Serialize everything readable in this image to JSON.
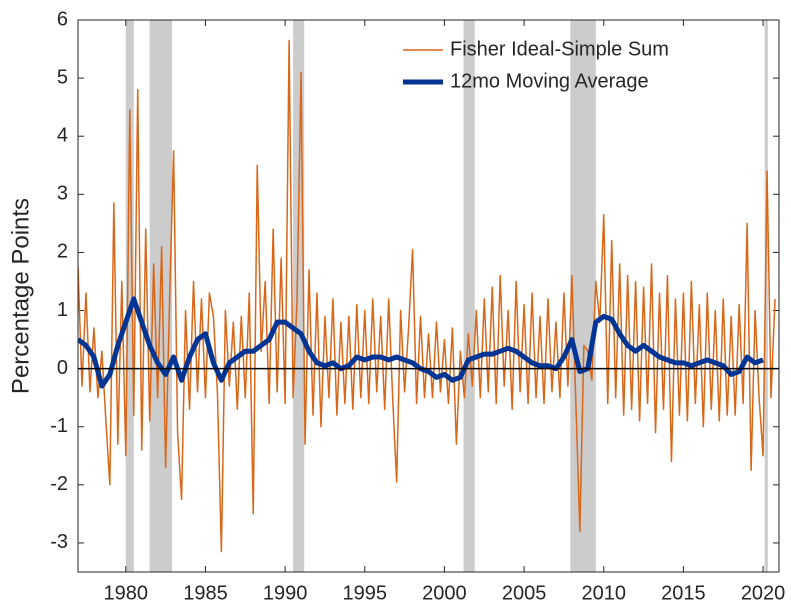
{
  "chart_data": {
    "type": "line",
    "y_label": "Percentage Points",
    "xlim": [
      1977,
      2021
    ],
    "ylim": [
      -3.5,
      6
    ],
    "xticks": [
      1980,
      1985,
      1990,
      1995,
      2000,
      2005,
      2010,
      2015,
      2020
    ],
    "yticks": [
      -3,
      -2,
      -1,
      0,
      1,
      2,
      3,
      4,
      5,
      6
    ],
    "zero_line": true,
    "legend": "upper right",
    "recessions": [
      [
        1980.0,
        1980.5
      ],
      [
        1981.5,
        1982.9
      ],
      [
        1990.5,
        1991.2
      ],
      [
        2001.2,
        2001.9
      ],
      [
        2007.9,
        2009.5
      ],
      [
        2020.1,
        2020.3
      ]
    ],
    "recession_color": "#cccccc",
    "series": [
      {
        "name": "Fisher Ideal-Simple Sum",
        "color": "#d9671a",
        "width": 1.5,
        "x": [
          1977,
          1977.25,
          1977.5,
          1977.75,
          1978,
          1978.25,
          1978.5,
          1978.75,
          1979,
          1979.25,
          1979.5,
          1979.75,
          1980,
          1980.25,
          1980.5,
          1980.75,
          1981,
          1981.25,
          1981.5,
          1981.75,
          1982,
          1982.25,
          1982.5,
          1982.75,
          1983,
          1983.25,
          1983.5,
          1983.75,
          1984,
          1984.25,
          1984.5,
          1984.75,
          1985,
          1985.25,
          1985.5,
          1985.75,
          1986,
          1986.25,
          1986.5,
          1986.75,
          1987,
          1987.25,
          1987.5,
          1987.75,
          1988,
          1988.25,
          1988.5,
          1988.75,
          1989,
          1989.25,
          1989.5,
          1989.75,
          1990,
          1990.25,
          1990.5,
          1990.75,
          1991,
          1991.25,
          1991.5,
          1991.75,
          1992,
          1992.25,
          1992.5,
          1992.75,
          1993,
          1993.25,
          1993.5,
          1993.75,
          1994,
          1994.25,
          1994.5,
          1994.75,
          1995,
          1995.25,
          1995.5,
          1995.75,
          1996,
          1996.25,
          1996.5,
          1996.75,
          1997,
          1997.25,
          1997.5,
          1997.75,
          1998,
          1998.25,
          1998.5,
          1998.75,
          1999,
          1999.25,
          1999.5,
          1999.75,
          2000,
          2000.25,
          2000.5,
          2000.75,
          2001,
          2001.25,
          2001.5,
          2001.75,
          2002,
          2002.25,
          2002.5,
          2002.75,
          2003,
          2003.25,
          2003.5,
          2003.75,
          2004,
          2004.25,
          2004.5,
          2004.75,
          2005,
          2005.25,
          2005.5,
          2005.75,
          2006,
          2006.25,
          2006.5,
          2006.75,
          2007,
          2007.25,
          2007.5,
          2007.75,
          2008,
          2008.25,
          2008.5,
          2008.75,
          2009,
          2009.25,
          2009.5,
          2009.75,
          2010,
          2010.25,
          2010.5,
          2010.75,
          2011,
          2011.25,
          2011.5,
          2011.75,
          2012,
          2012.25,
          2012.5,
          2012.75,
          2013,
          2013.25,
          2013.5,
          2013.75,
          2014,
          2014.25,
          2014.5,
          2014.75,
          2015,
          2015.25,
          2015.5,
          2015.75,
          2016,
          2016.25,
          2016.5,
          2016.75,
          2017,
          2017.25,
          2017.5,
          2017.75,
          2018,
          2018.25,
          2018.5,
          2018.75,
          2019,
          2019.25,
          2019.5,
          2019.75,
          2020,
          2020.25,
          2020.5,
          2020.75
        ],
        "values": [
          1.75,
          -0.3,
          1.3,
          -0.4,
          0.7,
          -0.5,
          0.3,
          -0.9,
          -2.0,
          2.85,
          -1.3,
          1.5,
          -1.5,
          4.45,
          -0.8,
          4.8,
          -1.4,
          2.4,
          -0.9,
          1.8,
          -0.5,
          2.1,
          -1.7,
          1.2,
          3.75,
          -1.1,
          -2.25,
          1.0,
          -0.7,
          1.5,
          -0.4,
          1.2,
          -0.5,
          1.3,
          0.9,
          -0.4,
          -3.15,
          1.0,
          -0.3,
          0.8,
          -0.7,
          0.9,
          -0.5,
          1.3,
          -2.5,
          3.5,
          0.3,
          1.5,
          -0.6,
          2.4,
          -0.4,
          1.9,
          -0.6,
          5.65,
          -0.5,
          1.2,
          5.1,
          -1.3,
          1.7,
          -0.8,
          1.3,
          -1.0,
          0.9,
          -0.5,
          1.2,
          -0.8,
          0.8,
          -0.6,
          0.9,
          -0.7,
          1.1,
          -0.5,
          1.0,
          -0.6,
          1.2,
          -0.4,
          0.9,
          -0.7,
          1.2,
          -0.5,
          -1.95,
          1.0,
          -0.4,
          0.7,
          2.05,
          -0.6,
          0.9,
          -0.5,
          0.6,
          -0.5,
          0.8,
          -0.4,
          0.5,
          -0.6,
          0.7,
          -1.3,
          0.3,
          -0.5,
          0.6,
          -0.3,
          1.0,
          -0.5,
          1.2,
          -0.4,
          1.4,
          -0.6,
          1.6,
          -0.3,
          1.0,
          -0.7,
          1.5,
          -0.4,
          1.1,
          -0.6,
          1.3,
          -0.5,
          0.9,
          -0.6,
          1.2,
          -0.4,
          0.8,
          -0.5,
          1.3,
          -0.3,
          1.6,
          -0.6,
          -2.8,
          0.4,
          0.3,
          -0.2,
          1.5,
          0.8,
          2.65,
          -0.6,
          2.2,
          -0.5,
          1.8,
          -0.8,
          1.6,
          -0.7,
          1.5,
          -0.9,
          1.4,
          -0.6,
          1.8,
          -1.1,
          1.3,
          -0.7,
          1.6,
          -1.6,
          1.2,
          -0.8,
          1.3,
          -0.9,
          1.5,
          -0.6,
          1.1,
          -1.0,
          1.3,
          -0.7,
          1.0,
          -0.9,
          1.2,
          -0.8,
          0.9,
          -0.8,
          1.1,
          -0.6,
          2.5,
          -1.75,
          1.0,
          -0.5,
          -1.5,
          3.4,
          -0.5,
          1.2
        ]
      },
      {
        "name": "12mo Moving Average",
        "color": "#003594",
        "width": 5,
        "x": [
          1977,
          1977.5,
          1978,
          1978.5,
          1979,
          1979.5,
          1980,
          1980.5,
          1981,
          1981.5,
          1982,
          1982.5,
          1983,
          1983.5,
          1984,
          1984.5,
          1985,
          1985.5,
          1986,
          1986.5,
          1987,
          1987.5,
          1988,
          1988.5,
          1989,
          1989.5,
          1990,
          1990.5,
          1991,
          1991.5,
          1992,
          1992.5,
          1993,
          1993.5,
          1994,
          1994.5,
          1995,
          1995.5,
          1996,
          1996.5,
          1997,
          1997.5,
          1998,
          1998.5,
          1999,
          1999.5,
          2000,
          2000.5,
          2001,
          2001.5,
          2002,
          2002.5,
          2003,
          2003.5,
          2004,
          2004.5,
          2005,
          2005.5,
          2006,
          2006.5,
          2007,
          2007.5,
          2008,
          2008.5,
          2009,
          2009.5,
          2010,
          2010.5,
          2011,
          2011.5,
          2012,
          2012.5,
          2013,
          2013.5,
          2014,
          2014.5,
          2015,
          2015.5,
          2016,
          2016.5,
          2017,
          2017.5,
          2018,
          2018.5,
          2019,
          2019.5,
          2020
        ],
        "values": [
          0.5,
          0.4,
          0.2,
          -0.3,
          -0.1,
          0.4,
          0.8,
          1.2,
          0.8,
          0.4,
          0.1,
          -0.1,
          0.2,
          -0.2,
          0.2,
          0.5,
          0.6,
          0.1,
          -0.2,
          0.1,
          0.2,
          0.3,
          0.3,
          0.4,
          0.5,
          0.8,
          0.8,
          0.7,
          0.6,
          0.3,
          0.1,
          0.05,
          0.1,
          0,
          0.05,
          0.2,
          0.15,
          0.2,
          0.2,
          0.15,
          0.2,
          0.15,
          0.1,
          0,
          -0.05,
          -0.15,
          -0.1,
          -0.2,
          -0.15,
          0.15,
          0.2,
          0.25,
          0.25,
          0.3,
          0.35,
          0.3,
          0.2,
          0.1,
          0.05,
          0.05,
          0,
          0.2,
          0.5,
          -0.05,
          0,
          0.8,
          0.9,
          0.85,
          0.6,
          0.4,
          0.3,
          0.4,
          0.3,
          0.2,
          0.15,
          0.1,
          0.1,
          0.05,
          0.1,
          0.15,
          0.1,
          0.05,
          -0.1,
          -0.05,
          0.2,
          0.1,
          0.15
        ]
      }
    ]
  }
}
